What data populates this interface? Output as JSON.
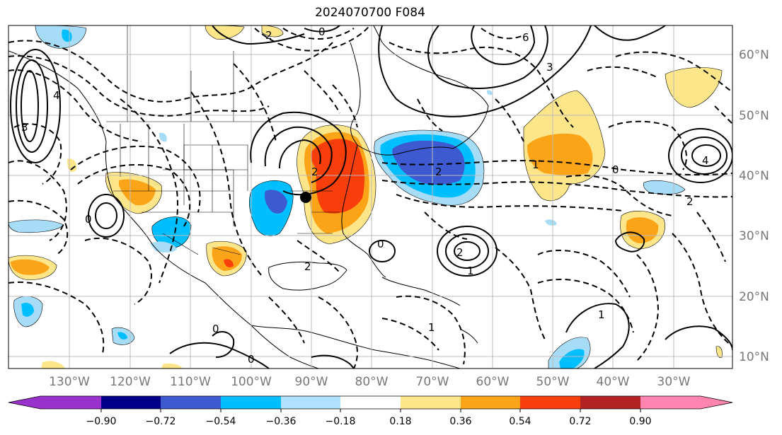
{
  "title": "2024070700 F084",
  "map": {
    "lon_labels": [
      "130°W",
      "120°W",
      "110°W",
      "100°W",
      "90°W",
      "80°W",
      "70°W",
      "60°W",
      "50°W",
      "40°W",
      "30°W"
    ],
    "lat_labels": [
      "60°N",
      "50°N",
      "40°N",
      "30°N",
      "20°N",
      "10°N"
    ],
    "contour_labels": [
      "2",
      "0",
      "3",
      "4",
      "6",
      "1",
      "2",
      "0",
      "1",
      "2",
      "0",
      "1",
      "2",
      "3",
      "4",
      "0",
      "0",
      "2",
      "1",
      "2",
      "0"
    ],
    "colors": {
      "fill_pos_1": "#fde68a",
      "fill_pos_2": "#fba418",
      "fill_pos_3": "#f83e0b",
      "fill_neg_1": "#a7dcf7",
      "fill_neg_2": "#00bfff",
      "fill_neg_3": "#3d5ad0",
      "marker": "#000000"
    }
  },
  "colorbar": {
    "ticks": [
      "−0.90",
      "−0.72",
      "−0.54",
      "−0.36",
      "−0.18",
      "0.18",
      "0.36",
      "0.54",
      "0.72",
      "0.90"
    ],
    "colors": [
      "#9932cc",
      "#00008b",
      "#3d5ad0",
      "#00bfff",
      "#b0e2ff",
      "#ffffff",
      "#fde68a",
      "#fba418",
      "#f83e0b",
      "#b22222",
      "#ff85b0"
    ]
  }
}
